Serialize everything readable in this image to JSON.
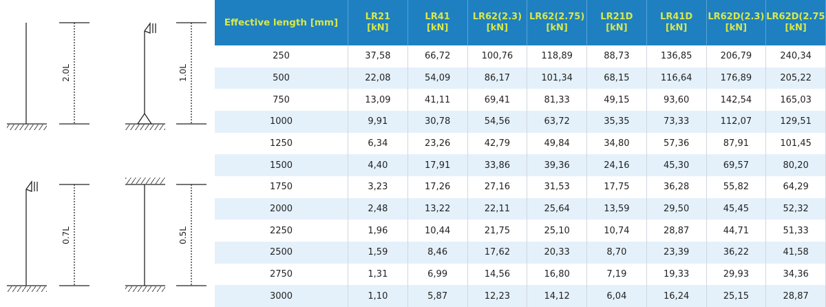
{
  "diagrams": [
    {
      "label": "2.0L"
    },
    {
      "label": "1.0L"
    },
    {
      "label": "0.7L"
    },
    {
      "label": "0.5L"
    }
  ],
  "table": {
    "header": {
      "first": "Effective length [mm]",
      "columns": [
        {
          "name": "LR21",
          "unit": "[kN]"
        },
        {
          "name": "LR41",
          "unit": "[kN]"
        },
        {
          "name": "LR62(2.3)",
          "unit": "[kN]"
        },
        {
          "name": "LR62(2.75)",
          "unit": "[kN]"
        },
        {
          "name": "LR21D",
          "unit": "[kN]"
        },
        {
          "name": "LR41D",
          "unit": "[kN]"
        },
        {
          "name": "LR62D(2.3)",
          "unit": "[kN]"
        },
        {
          "name": "LR62D(2.75)",
          "unit": "[kN]"
        }
      ]
    },
    "rows": [
      [
        "250",
        "37,58",
        "66,72",
        "100,76",
        "118,89",
        "88,73",
        "136,85",
        "206,79",
        "240,34"
      ],
      [
        "500",
        "22,08",
        "54,09",
        "86,17",
        "101,34",
        "68,15",
        "116,64",
        "176,89",
        "205,22"
      ],
      [
        "750",
        "13,09",
        "41,11",
        "69,41",
        "81,33",
        "49,15",
        "93,60",
        "142,54",
        "165,03"
      ],
      [
        "1000",
        "9,91",
        "30,78",
        "54,56",
        "63,72",
        "35,35",
        "73,33",
        "112,07",
        "129,51"
      ],
      [
        "1250",
        "6,34",
        "23,26",
        "42,79",
        "49,84",
        "34,80",
        "57,36",
        "87,91",
        "101,45"
      ],
      [
        "1500",
        "4,40",
        "17,91",
        "33,86",
        "39,36",
        "24,16",
        "45,30",
        "69,57",
        "80,20"
      ],
      [
        "1750",
        "3,23",
        "17,26",
        "27,16",
        "31,53",
        "17,75",
        "36,28",
        "55,82",
        "64,29"
      ],
      [
        "2000",
        "2,48",
        "13,22",
        "22,11",
        "25,64",
        "13,59",
        "29,50",
        "45,45",
        "52,32"
      ],
      [
        "2250",
        "1,96",
        "10,44",
        "21,75",
        "25,10",
        "10,74",
        "28,87",
        "44,71",
        "51,33"
      ],
      [
        "2500",
        "1,59",
        "8,46",
        "17,62",
        "20,33",
        "8,70",
        "23,39",
        "36,22",
        "41,58"
      ],
      [
        "2750",
        "1,31",
        "6,99",
        "14,56",
        "16,80",
        "7,19",
        "19,33",
        "29,93",
        "34,36"
      ],
      [
        "3000",
        "1,10",
        "5,87",
        "12,23",
        "14,12",
        "6,04",
        "16,24",
        "25,15",
        "28,87"
      ]
    ]
  }
}
